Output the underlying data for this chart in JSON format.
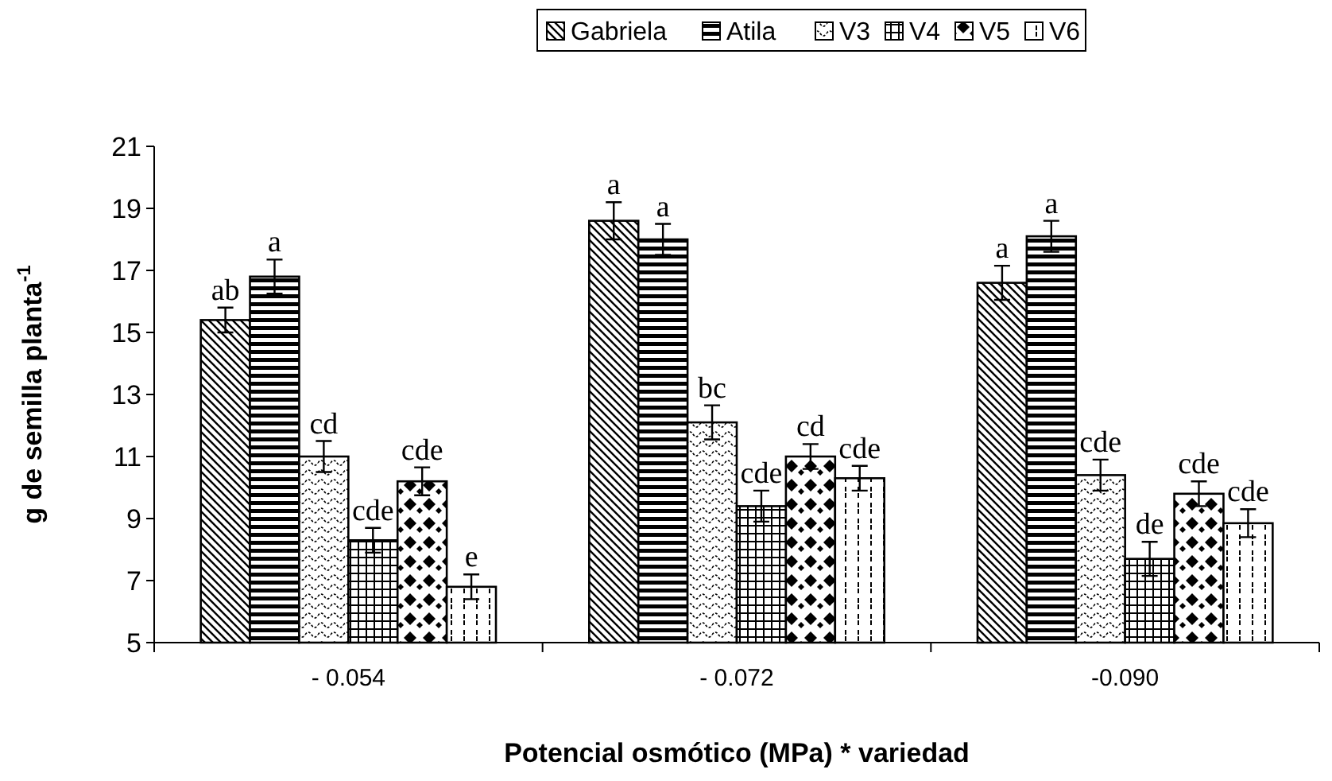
{
  "chart_data": {
    "type": "bar",
    "xlabel": "Potencial osmótico (MPa) * variedad",
    "ylabel": "g de semilla planta$^{-1}$",
    "categories": [
      "- 0.054",
      "- 0.072",
      "-0.090"
    ],
    "series": [
      {
        "name": "Gabriela",
        "color": "#000000",
        "values": [
          15.4,
          18.6,
          16.6
        ],
        "errors": [
          0.4,
          0.6,
          0.55
        ]
      },
      {
        "name": "Atila",
        "color": "#000000",
        "values": [
          16.8,
          18.0,
          18.1
        ],
        "errors": [
          0.55,
          0.5,
          0.5
        ]
      },
      {
        "name": "V3",
        "color": "#000000",
        "values": [
          11.0,
          12.1,
          10.4
        ],
        "errors": [
          0.5,
          0.55,
          0.5
        ]
      },
      {
        "name": "V4",
        "color": "#000000",
        "values": [
          8.3,
          9.4,
          7.7
        ],
        "errors": [
          0.4,
          0.5,
          0.55
        ]
      },
      {
        "name": "V5",
        "color": "#000000",
        "values": [
          10.2,
          11.0,
          9.8
        ],
        "errors": [
          0.45,
          0.4,
          0.4
        ]
      },
      {
        "name": "V6",
        "color": "#000000",
        "values": [
          6.8,
          10.3,
          8.85
        ],
        "errors": [
          0.4,
          0.4,
          0.45
        ]
      }
    ],
    "ylim": [
      5,
      21
    ],
    "yticks": [
      5,
      7,
      9,
      11,
      13,
      15,
      17,
      19,
      21
    ],
    "grid": false,
    "legend": "top",
    "annotations": [
      "ab",
      "a",
      "cd",
      "cde",
      "cde",
      "e",
      "a",
      "a",
      "bc",
      "cde",
      "cd",
      "cde",
      "a",
      "a",
      "cde",
      "de",
      "cde",
      "cde"
    ]
  }
}
